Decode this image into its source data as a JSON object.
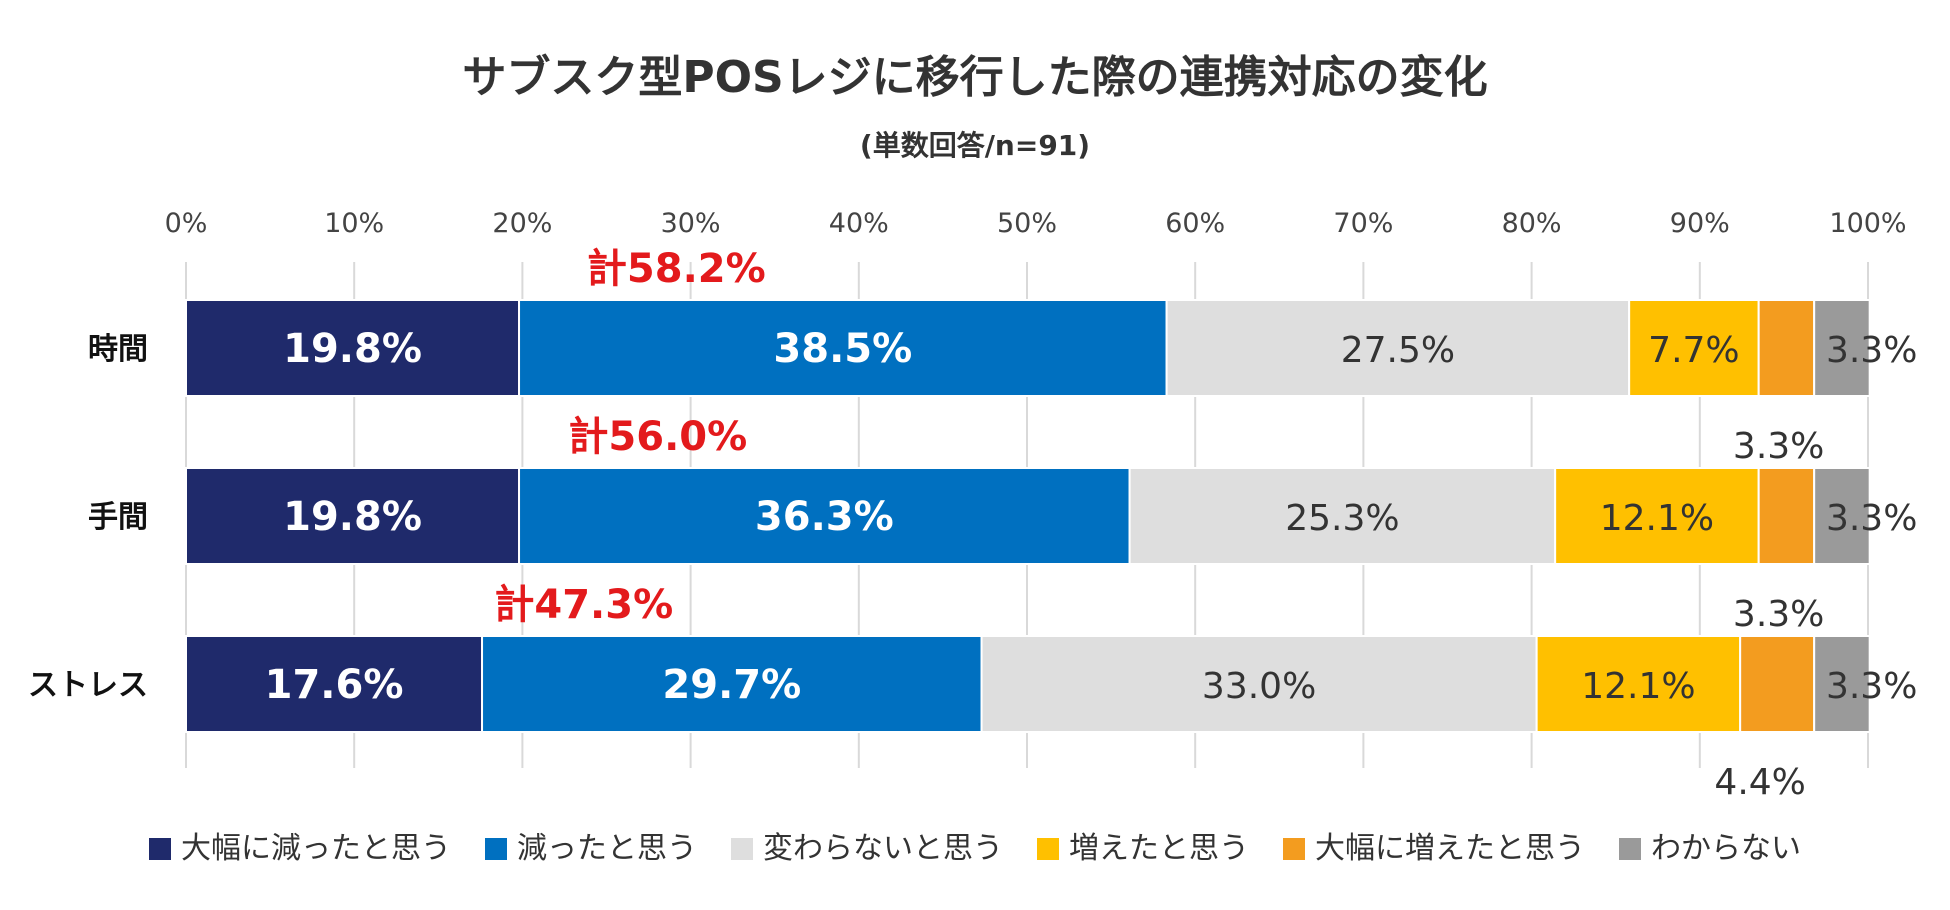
{
  "chart_data": {
    "type": "bar",
    "orientation": "horizontal",
    "stacked": true,
    "title": "サブスク型POSレジに移行した際の連携対応の変化",
    "subtitle": "(単数回答/n=91)",
    "xlim": [
      0,
      100
    ],
    "xticks": [
      "0%",
      "10%",
      "20%",
      "30%",
      "40%",
      "50%",
      "60%",
      "70%",
      "80%",
      "90%",
      "100%"
    ],
    "grid": true,
    "legend_position": "bottom",
    "categories": [
      "時間",
      "手間",
      "ストレス"
    ],
    "series": [
      {
        "name": "大幅に減ったと思う",
        "color": "#1f2a6b",
        "values": [
          19.8,
          19.8,
          17.6
        ],
        "labels": [
          "19.8%",
          "19.8%",
          "17.6%"
        ]
      },
      {
        "name": "減ったと思う",
        "color": "#0070c0",
        "values": [
          38.5,
          36.3,
          29.7
        ],
        "labels": [
          "38.5%",
          "36.3%",
          "29.7%"
        ]
      },
      {
        "name": "変わらないと思う",
        "color": "#dedede",
        "values": [
          27.5,
          25.3,
          33.0
        ],
        "labels": [
          "27.5%",
          "25.3%",
          "33.0%"
        ]
      },
      {
        "name": "増えたと思う",
        "color": "#ffc000",
        "values": [
          7.7,
          12.1,
          12.1
        ],
        "labels": [
          "7.7%",
          "12.1%",
          "12.1%"
        ]
      },
      {
        "name": "大幅に増えたと思う",
        "color": "#f39c1f",
        "values": [
          3.3,
          3.3,
          4.4
        ],
        "labels": [
          "3.3%",
          "3.3%",
          "4.4%"
        ]
      },
      {
        "name": "わからない",
        "color": "#9a9a9a",
        "values": [
          3.3,
          3.3,
          3.3
        ],
        "labels": [
          "3.3%",
          "3.3%",
          "3.3%"
        ]
      }
    ],
    "totals": [
      "計58.2%",
      "計56.0%",
      "計47.3%"
    ]
  }
}
